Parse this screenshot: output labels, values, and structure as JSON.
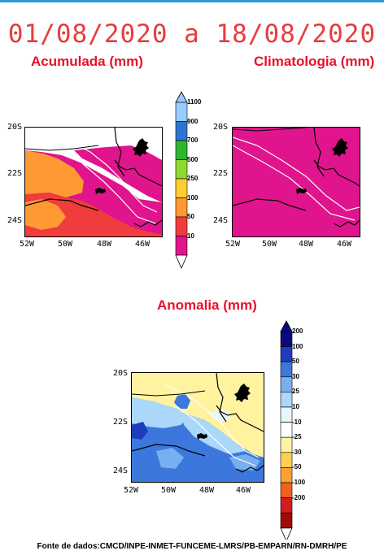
{
  "header": {
    "date_range": "01/08/2020 a 18/08/2020"
  },
  "panels": {
    "acumulada": {
      "title": "Acumulada (mm)"
    },
    "climatologia": {
      "title": "Climatologia (mm)"
    },
    "anomalia": {
      "title": "Anomalia (mm)"
    }
  },
  "axes": {
    "lat_ticks": [
      "20S",
      "22S",
      "24S"
    ],
    "lon_ticks": [
      "52W",
      "50W",
      "48W",
      "46W"
    ]
  },
  "colorbar_precip": {
    "labels": [
      "1100",
      "900",
      "700",
      "500",
      "250",
      "100",
      "50",
      "10"
    ],
    "colors": [
      "#99ccff",
      "#2f74d0",
      "#2fb52f",
      "#8fd82f",
      "#ffcc33",
      "#ff9933",
      "#f03c3c",
      "#e0148c"
    ]
  },
  "colorbar_anomaly": {
    "labels": [
      "200",
      "100",
      "50",
      "30",
      "25",
      "10",
      "-10",
      "-25",
      "-30",
      "-50",
      "-100",
      "-200"
    ],
    "colors": [
      "#0a0a80",
      "#1e3cbe",
      "#3c78dc",
      "#78aff0",
      "#aad7fa",
      "#e6f7ff",
      "#ffffff",
      "#fff3a0",
      "#ffd050",
      "#ff9f30",
      "#f0601e",
      "#d21e1e",
      "#a00a0a"
    ]
  },
  "footer": {
    "source": "Fonte de dados:CMCD/INPE-INMET-FUNCEME-LMRS/PB-EMPARN/RN-DMRH/PE"
  }
}
